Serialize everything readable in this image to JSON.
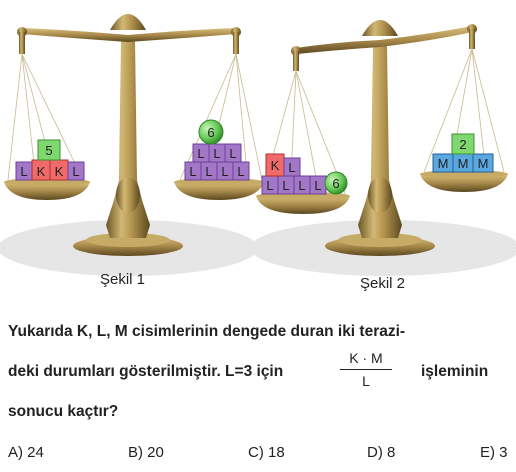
{
  "figure": {
    "caption_1": "Şekil 1",
    "caption_2": "Şekil 2",
    "scale_1": {
      "left_pan": {
        "bottom_row": [
          "L",
          "K",
          "K",
          "L"
        ],
        "top_block": "5"
      },
      "right_pan": {
        "bottom_row": [
          "L",
          "L",
          "L",
          "L"
        ],
        "middle_row": [
          "L",
          "L",
          "L"
        ],
        "top_ball": "6"
      }
    },
    "scale_2": {
      "left_pan": {
        "bottom_row": [
          "L",
          "L",
          "L",
          "L"
        ],
        "ball": "6",
        "top_row": [
          "K",
          "L"
        ]
      },
      "right_pan": {
        "bottom_row": [
          "M",
          "M",
          "M"
        ],
        "top_block": "2"
      }
    },
    "colors": {
      "K_block": "#f06a6a",
      "L_block": "#a277c8",
      "M_block": "#5ba8e0",
      "number_block": "#7fd86f",
      "ball": "#69c95a",
      "brass": "#a88a4a",
      "shadow": "#e6e6e6"
    }
  },
  "question": {
    "line1": "Yukarıda K, L, M cisimlerinin dengede duran iki terazi-",
    "line2_before": "deki durumları gösterilmiştir. L=3 için",
    "fraction_numerator": "K · M",
    "fraction_denominator": "L",
    "line2_after": "işleminin",
    "line3": "sonucu kaçtır?"
  },
  "choices": [
    {
      "label": "A) 24"
    },
    {
      "label": "B) 20"
    },
    {
      "label": "C) 18"
    },
    {
      "label": "D) 8"
    },
    {
      "label": "E) 3"
    }
  ]
}
